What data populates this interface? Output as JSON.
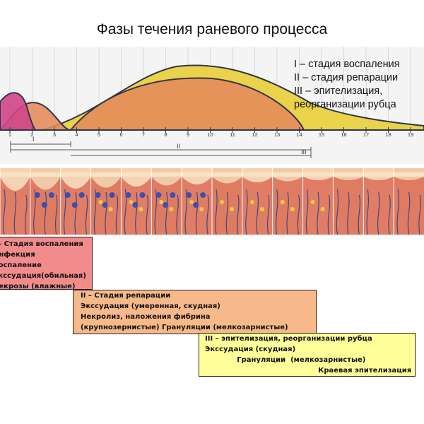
{
  "title": "Фазы течения раневого процесса",
  "legend": [
    "I – стадия воспаления",
    "II – стадия репарации",
    "III – эпителизация,",
    "реорганизации  рубца"
  ],
  "axis": {
    "ticks": [
      "1",
      "2",
      "3",
      "4",
      "5",
      "6",
      "7",
      "8",
      "9",
      "10",
      "11",
      "12",
      "13",
      "14",
      "15",
      "16",
      "17",
      "18",
      "19"
    ],
    "phase_labels": [
      "I",
      "II",
      "III"
    ]
  },
  "colors": {
    "phase1": "#d0468a",
    "phase2": "#e48a5a",
    "phase3": "#ead24a",
    "grid_bg": "#f4f4f4",
    "box1": "#f28c8c",
    "box2": "#f7b98a",
    "box3": "#ffff99"
  },
  "boxes": {
    "stage1": [
      "I – Стадия воспаления",
      "Инфекция",
      "Воспаление",
      "Экссудация(обильная)",
      "Некрозы  (влажные)"
    ],
    "stage2": [
      "II – Стадия репарации",
      "Экссудация (умеренная, скудная)",
      " Некролиз, наложения фибрина",
      "(крупнозернистые)  Грануляции  (мелкозарнистые)"
    ],
    "stage3": [
      "III – эпителизация, реорганизации  рубца",
      "Экссудация (скудная)",
      "             Грануляции  (мелкозарнистые)",
      "                                              Краевая эпителизация"
    ]
  }
}
